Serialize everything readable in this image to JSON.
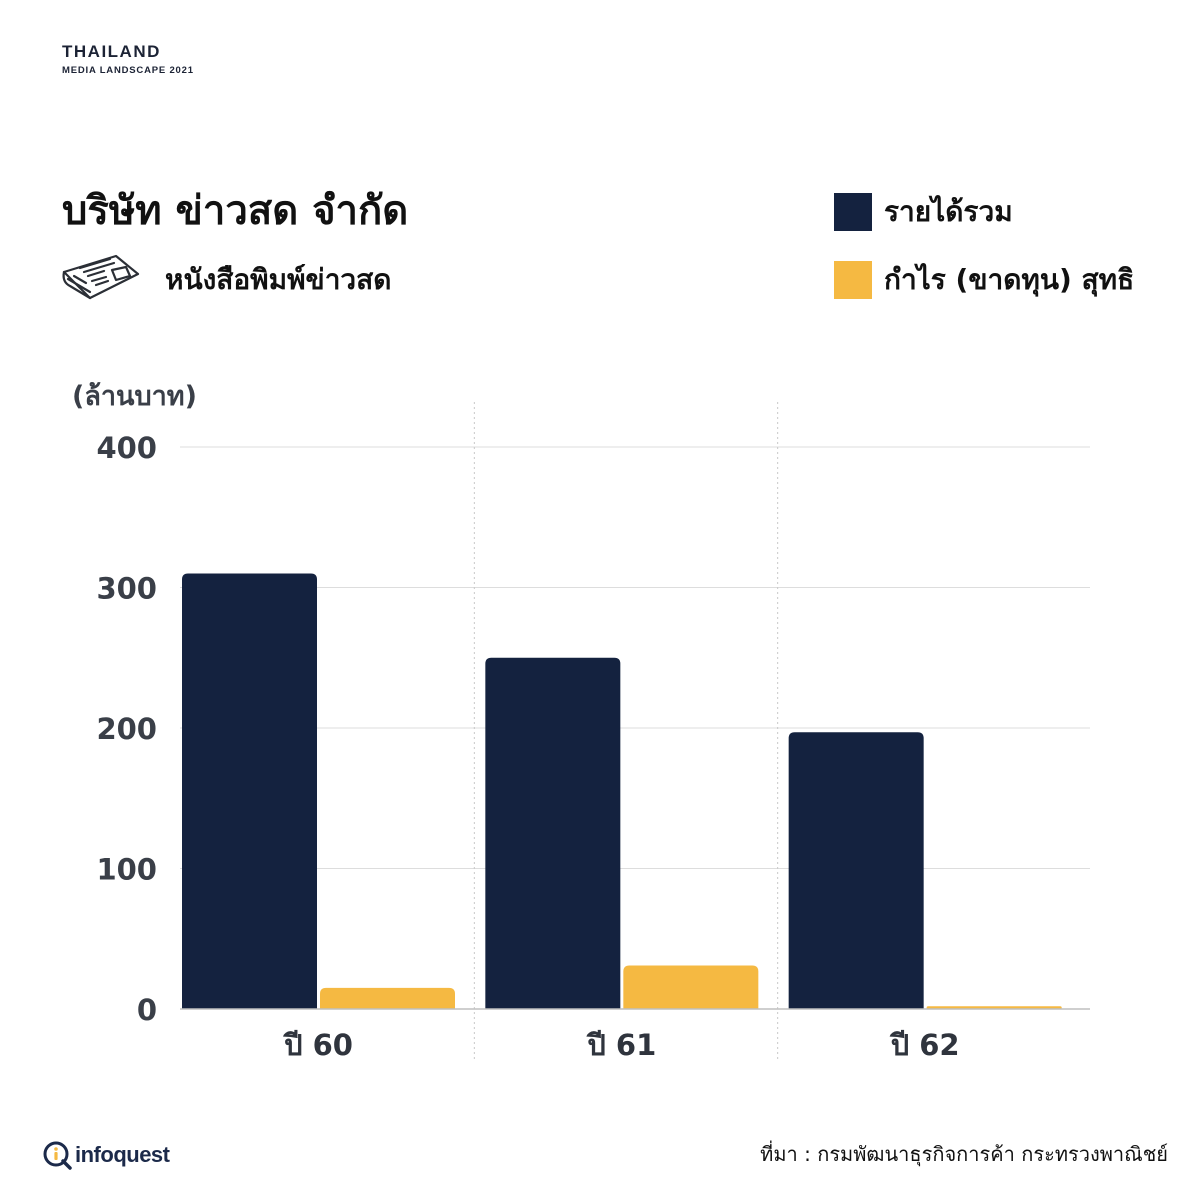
{
  "brand": {
    "title": "THAILAND",
    "subtitle": "MEDIA LANDSCAPE 2021"
  },
  "icons": {
    "publication": "newspaper-icon",
    "logo": "infoquest-logo-icon"
  },
  "colors": {
    "revenue": "#14223f",
    "profit": "#f5b942",
    "grid": "#dddddd",
    "tick": "#3a3f48"
  },
  "source": "ที่มา : กรมพัฒนาธุรกิจการค้า กระทรวงพาณิชย์",
  "logo_text": "infoquest",
  "chart_data": {
    "type": "bar",
    "title": "บริษัท ข่าวสด จำกัด",
    "subtitle": "หนังสือพิมพ์ข่าวสด",
    "ylabel": "(ล้านบาท)",
    "xlabel": "",
    "categories": [
      "ปี 60",
      "ปี 61",
      "ปี 62"
    ],
    "series": [
      {
        "name": "รายได้รวม",
        "color": "#14223f",
        "values": [
          310,
          250,
          197
        ]
      },
      {
        "name": "กำไร (ขาดทุน) สุทธิ",
        "color": "#f5b942",
        "values": [
          15,
          31,
          2
        ]
      }
    ],
    "ylim": [
      0,
      400
    ],
    "yticks": [
      "0",
      "100",
      "200",
      "300",
      "400"
    ],
    "grid": true,
    "legend_position": "top-right"
  }
}
